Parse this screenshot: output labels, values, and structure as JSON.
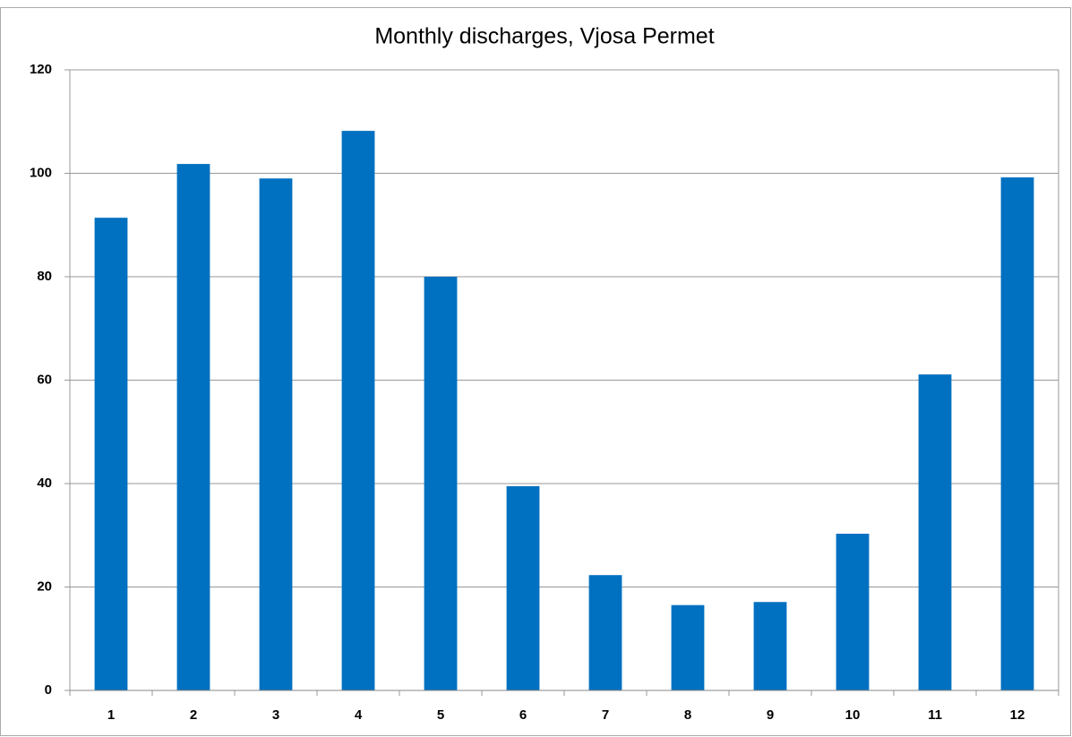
{
  "chart_data": {
    "type": "bar",
    "title": "Monthly discharges, Vjosa Permet",
    "categories": [
      "1",
      "2",
      "3",
      "4",
      "5",
      "6",
      "7",
      "8",
      "9",
      "10",
      "11",
      "12"
    ],
    "values": [
      91.4,
      101.8,
      99.0,
      108.2,
      80.0,
      39.5,
      22.3,
      16.5,
      17.1,
      30.3,
      61.1,
      99.2
    ],
    "color": "#0070c0",
    "ylim": [
      0,
      120
    ],
    "yticks": [
      0,
      20,
      40,
      60,
      80,
      100,
      120
    ],
    "grid": true
  }
}
